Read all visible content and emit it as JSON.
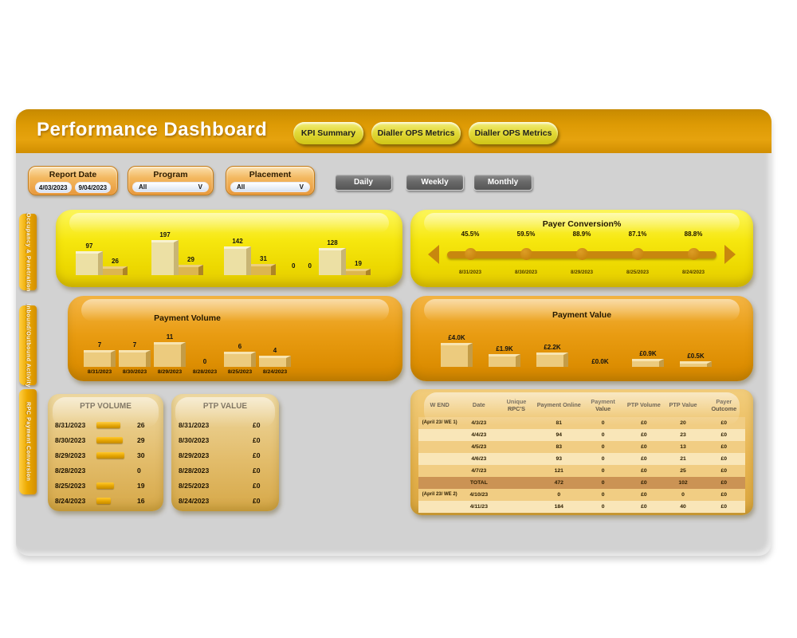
{
  "header": {
    "title": "Performance Dashboard",
    "nav": [
      "KPI Summary",
      "Dialler OPS Metrics",
      "Dialler OPS Metrics"
    ]
  },
  "filters": {
    "report_date": {
      "label": "Report Date",
      "from": "4/03/2023",
      "to": "9/04/2023"
    },
    "program": {
      "label": "Program",
      "value": "All"
    },
    "placement": {
      "label": "Placement",
      "value": "All"
    },
    "period_buttons": [
      "Daily",
      "Weekly",
      "Monthly"
    ]
  },
  "icons": {
    "dropdown_chevron": "V"
  },
  "side_tabs": [
    "Occupancy & Penetration",
    "Inbound/Outbound Activity",
    "RPC Payment Conversion"
  ],
  "chart_data": [
    {
      "type": "bar",
      "title": "",
      "note": "paired 3D bars, yellow panel, no axis labels",
      "series": [
        {
          "name": "primary",
          "values": [
            97,
            197,
            142,
            0,
            128
          ]
        },
        {
          "name": "secondary",
          "values": [
            26,
            29,
            31,
            0,
            19
          ]
        }
      ]
    },
    {
      "type": "line",
      "title": "Payer Conversion%",
      "x": [
        "8/31/2023",
        "8/30/2023",
        "8/29/2023",
        "8/25/2023",
        "8/24/2023"
      ],
      "values": [
        45.5,
        59.5,
        88.9,
        87.1,
        88.8
      ],
      "labels": [
        "45.5%",
        "59.5%",
        "88.9%",
        "87.1%",
        "88.8%"
      ],
      "legend_position": "none",
      "grid": false
    },
    {
      "type": "bar",
      "title": "Payment Volume",
      "categories": [
        "8/31/2023",
        "8/30/2023",
        "8/29/2023",
        "8/28/2023",
        "8/25/2023",
        "8/24/2023"
      ],
      "values": [
        7,
        7,
        11,
        0,
        6,
        4
      ]
    },
    {
      "type": "bar",
      "title": "Payment Value",
      "labels": [
        "£4.0K",
        "£1.9K",
        "£2.2K",
        "£0.0K",
        "£0.9K",
        "£0.5K"
      ],
      "values": [
        4.0,
        1.9,
        2.2,
        0,
        0.9,
        0.5
      ]
    },
    {
      "type": "table",
      "title": "PTP VOLUME",
      "rows": [
        {
          "date": "8/31/2023",
          "value": 26
        },
        {
          "date": "8/30/2023",
          "value": 29
        },
        {
          "date": "8/29/2023",
          "value": 30
        },
        {
          "date": "8/28/2023",
          "value": 0
        },
        {
          "date": "8/25/2023",
          "value": 19
        },
        {
          "date": "8/24/2023",
          "value": 16
        }
      ]
    },
    {
      "type": "table",
      "title": "PTP VALUE",
      "rows": [
        {
          "date": "8/31/2023",
          "value": "£0"
        },
        {
          "date": "8/30/2023",
          "value": "£0"
        },
        {
          "date": "8/29/2023",
          "value": "£0"
        },
        {
          "date": "8/28/2023",
          "value": "£0"
        },
        {
          "date": "8/25/2023",
          "value": "£0"
        },
        {
          "date": "8/24/2023",
          "value": "£0"
        }
      ]
    },
    {
      "type": "table",
      "title": "",
      "headers": [
        "W END",
        "Date",
        "Unique RPC'S",
        "Payment Online",
        "Payment Value",
        "PTP Volume",
        "PTP Value",
        "Payer Outcome"
      ],
      "rows": [
        {
          "cls": "gold",
          "cells": [
            "(April 23/ WE 1)",
            "4/3/23",
            "",
            "81",
            "0",
            "£0",
            "20",
            "£0"
          ]
        },
        {
          "cls": "cream",
          "cells": [
            "",
            "4/4/23",
            "",
            "94",
            "0",
            "£0",
            "23",
            "£0"
          ]
        },
        {
          "cls": "gold",
          "cells": [
            "",
            "4/5/23",
            "",
            "83",
            "0",
            "£0",
            "13",
            "£0"
          ]
        },
        {
          "cls": "cream",
          "cells": [
            "",
            "4/6/23",
            "",
            "93",
            "0",
            "£0",
            "21",
            "£0"
          ]
        },
        {
          "cls": "gold",
          "cells": [
            "",
            "4/7/23",
            "",
            "121",
            "0",
            "£0",
            "25",
            "£0"
          ]
        },
        {
          "cls": "total",
          "cells": [
            "",
            "TOTAL",
            "",
            "472",
            "0",
            "£0",
            "102",
            "£0"
          ]
        },
        {
          "cls": "gold",
          "cells": [
            "(April 23/ WE 2)",
            "4/10/23",
            "",
            "0",
            "0",
            "£0",
            "0",
            "£0"
          ]
        },
        {
          "cls": "cream",
          "cells": [
            "",
            "4/11/23",
            "",
            "184",
            "0",
            "£0",
            "40",
            "£0"
          ]
        }
      ]
    }
  ]
}
